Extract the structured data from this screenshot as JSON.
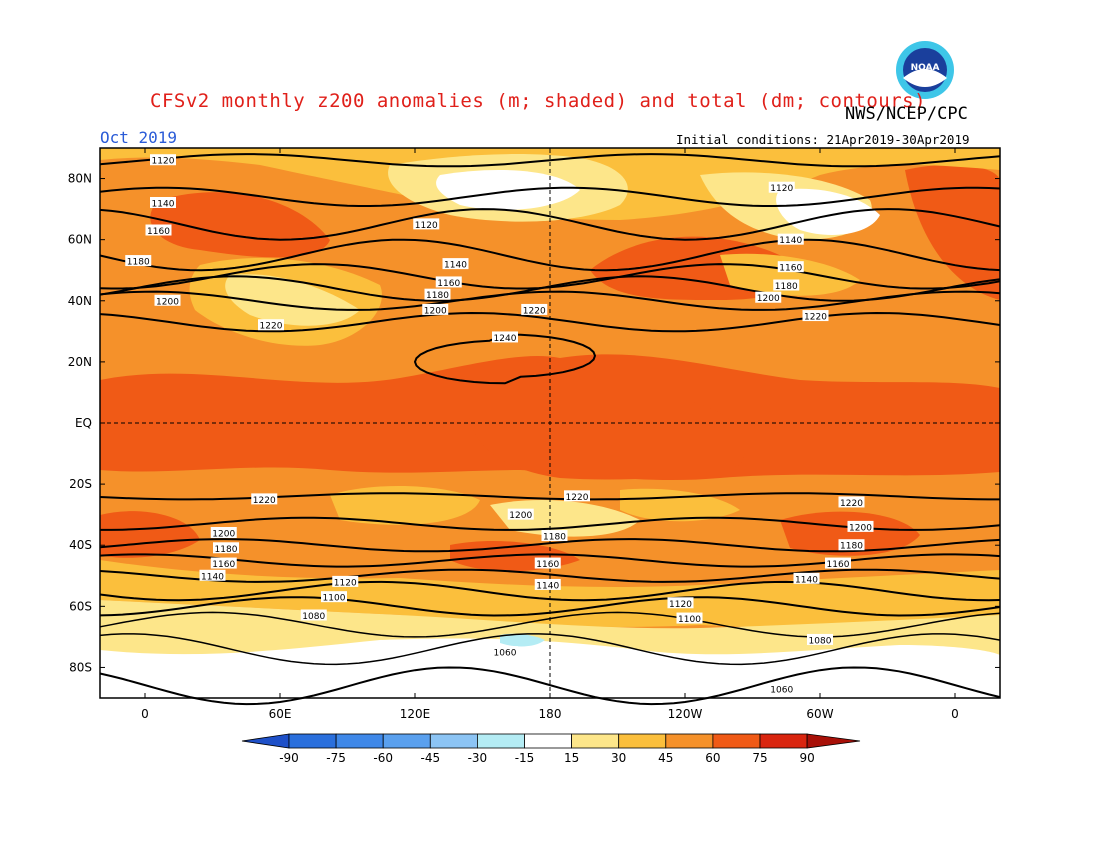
{
  "header": {
    "title": "CFSv2 monthly z200 anomalies (m; shaded) and total (dm; contours)",
    "agency": "NWS/NCEP/CPC",
    "month": "Oct 2019",
    "initial_conditions": "Initial conditions: 21Apr2019-30Apr2019",
    "logo_text": "NOAA"
  },
  "map": {
    "lat_labels": [
      "80N",
      "60N",
      "40N",
      "20N",
      "EQ",
      "20S",
      "40S",
      "60S",
      "80S"
    ],
    "lon_labels": [
      "0",
      "60E",
      "120E",
      "180",
      "120W",
      "60W",
      "0"
    ],
    "lat_values": [
      80,
      60,
      40,
      20,
      0,
      -20,
      -40,
      -60,
      -80
    ],
    "lon_values": [
      0,
      60,
      120,
      180,
      240,
      300,
      360
    ],
    "lon_range": [
      -20,
      380
    ],
    "lat_range": [
      -90,
      90
    ],
    "colors": {
      "c15": "#ffffff",
      "c30": "#fde68a",
      "c45": "#fbbf3c",
      "c60": "#f5912a",
      "c75": "#f05a16",
      "c90": "#d9250f",
      "neg15": "#b4ecf4",
      "contour": "#000000"
    },
    "contour_labels": [
      {
        "text": "1120",
        "lon": 8,
        "lat": 86
      },
      {
        "text": "1140",
        "lon": 8,
        "lat": 72
      },
      {
        "text": "1160",
        "lon": 6,
        "lat": 63
      },
      {
        "text": "1180",
        "lon": -3,
        "lat": 53
      },
      {
        "text": "1200",
        "lon": 10,
        "lat": 40
      },
      {
        "text": "1220",
        "lon": 56,
        "lat": 32
      },
      {
        "text": "1120",
        "lon": 125,
        "lat": 65
      },
      {
        "text": "1140",
        "lon": 138,
        "lat": 52
      },
      {
        "text": "1160",
        "lon": 135,
        "lat": 46
      },
      {
        "text": "1180",
        "lon": 130,
        "lat": 42
      },
      {
        "text": "1200",
        "lon": 129,
        "lat": 37
      },
      {
        "text": "1220",
        "lon": 173,
        "lat": 37
      },
      {
        "text": "1240",
        "lon": 160,
        "lat": 28
      },
      {
        "text": "1120",
        "lon": 283,
        "lat": 77
      },
      {
        "text": "1140",
        "lon": 287,
        "lat": 60
      },
      {
        "text": "1160",
        "lon": 287,
        "lat": 51
      },
      {
        "text": "1180",
        "lon": 285,
        "lat": 45
      },
      {
        "text": "1200",
        "lon": 277,
        "lat": 41
      },
      {
        "text": "1220",
        "lon": 298,
        "lat": 35
      },
      {
        "text": "1220",
        "lon": 53,
        "lat": -25
      },
      {
        "text": "1200",
        "lon": 35,
        "lat": -36
      },
      {
        "text": "1180",
        "lon": 36,
        "lat": -41
      },
      {
        "text": "1160",
        "lon": 35,
        "lat": -46
      },
      {
        "text": "1140",
        "lon": 30,
        "lat": -50
      },
      {
        "text": "1120",
        "lon": 89,
        "lat": -52
      },
      {
        "text": "1100",
        "lon": 84,
        "lat": -57
      },
      {
        "text": "1080",
        "lon": 75,
        "lat": -63
      },
      {
        "text": "1220",
        "lon": 192,
        "lat": -24
      },
      {
        "text": "1200",
        "lon": 167,
        "lat": -30
      },
      {
        "text": "1180",
        "lon": 182,
        "lat": -37
      },
      {
        "text": "1160",
        "lon": 179,
        "lat": -46
      },
      {
        "text": "1140",
        "lon": 179,
        "lat": -53
      },
      {
        "text": "1060",
        "lon": 160,
        "lat": -75
      },
      {
        "text": "1220",
        "lon": 314,
        "lat": -26
      },
      {
        "text": "1200",
        "lon": 318,
        "lat": -34
      },
      {
        "text": "1180",
        "lon": 314,
        "lat": -40
      },
      {
        "text": "1160",
        "lon": 308,
        "lat": -46
      },
      {
        "text": "1140",
        "lon": 294,
        "lat": -51
      },
      {
        "text": "1120",
        "lon": 238,
        "lat": -59
      },
      {
        "text": "1100",
        "lon": 242,
        "lat": -64
      },
      {
        "text": "1080",
        "lon": 300,
        "lat": -71
      },
      {
        "text": "1060",
        "lon": 283,
        "lat": -87
      }
    ]
  },
  "colorbar": {
    "labels": [
      "-90",
      "-75",
      "-60",
      "-45",
      "-30",
      "-15",
      "15",
      "30",
      "45",
      "60",
      "75",
      "90"
    ],
    "colors": [
      "#2a6fdc",
      "#3f88e8",
      "#5aa0ee",
      "#8cc4f4",
      "#b4ecf4",
      "#ffffff",
      "#fde68a",
      "#fbbf3c",
      "#f5912a",
      "#f05a16",
      "#d9250f"
    ],
    "end_left": "#1e50c8",
    "end_right": "#a81008"
  }
}
